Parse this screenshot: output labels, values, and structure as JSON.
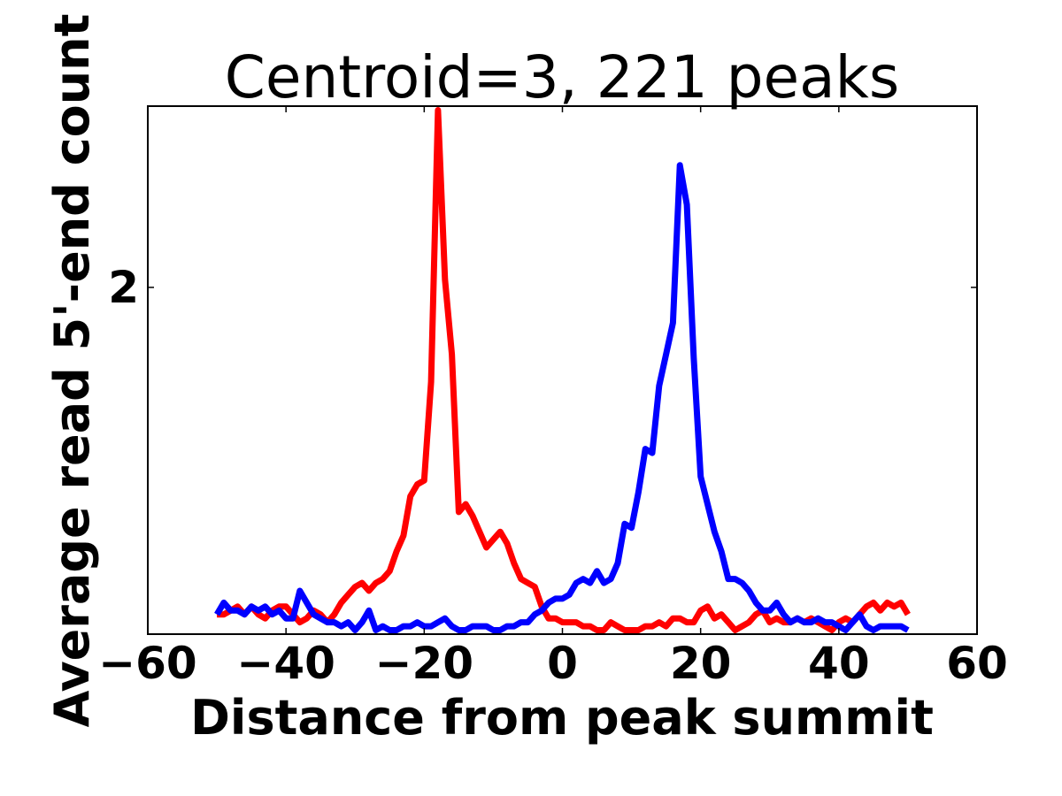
{
  "chart_data": {
    "type": "line",
    "title": "Centroid=3, 221 peaks",
    "xlabel": "Distance from peak summit",
    "ylabel": "Average read 5'-end count",
    "xlim": [
      -60,
      60
    ],
    "ylim": [
      1.12,
      2.46
    ],
    "xticks": [
      -60,
      -40,
      -20,
      0,
      20,
      40,
      60
    ],
    "xtick_labels": [
      "−60",
      "−40",
      "−20",
      "0",
      "20",
      "40",
      "60"
    ],
    "yticks": [
      2
    ],
    "ytick_labels": [
      "2"
    ],
    "grid": false,
    "legend": "none",
    "series": [
      {
        "color": "#ff0000",
        "x": [
          -50,
          -49,
          -48,
          -47,
          -46,
          -45,
          -44,
          -43,
          -42,
          -41,
          -40,
          -39,
          -38,
          -37,
          -36,
          -35,
          -34,
          -33,
          -32,
          -31,
          -30,
          -29,
          -28,
          -27,
          -26,
          -25,
          -24,
          -23,
          -22,
          -21,
          -20,
          -19,
          -18,
          -17,
          -16,
          -15,
          -14,
          -13,
          -12,
          -11,
          -10,
          -9,
          -8,
          -7,
          -6,
          -5,
          -4,
          -3,
          -2,
          -1,
          0,
          1,
          2,
          3,
          4,
          5,
          6,
          7,
          8,
          9,
          10,
          11,
          12,
          13,
          14,
          15,
          16,
          17,
          18,
          19,
          20,
          21,
          22,
          23,
          24,
          25,
          26,
          27,
          28,
          29,
          30,
          31,
          32,
          33,
          34,
          35,
          36,
          37,
          38,
          39,
          40,
          41,
          42,
          43,
          44,
          45,
          46,
          47,
          48,
          49,
          50
        ],
        "y": [
          1.17,
          1.17,
          1.18,
          1.19,
          1.17,
          1.19,
          1.17,
          1.16,
          1.18,
          1.19,
          1.19,
          1.17,
          1.15,
          1.16,
          1.18,
          1.17,
          1.15,
          1.17,
          1.2,
          1.22,
          1.24,
          1.25,
          1.23,
          1.25,
          1.26,
          1.28,
          1.33,
          1.37,
          1.47,
          1.5,
          1.51,
          1.76,
          2.45,
          2.02,
          1.83,
          1.43,
          1.45,
          1.42,
          1.38,
          1.34,
          1.36,
          1.38,
          1.35,
          1.3,
          1.26,
          1.25,
          1.24,
          1.19,
          1.16,
          1.16,
          1.15,
          1.15,
          1.15,
          1.14,
          1.14,
          1.13,
          1.13,
          1.15,
          1.14,
          1.13,
          1.13,
          1.13,
          1.14,
          1.14,
          1.15,
          1.14,
          1.16,
          1.16,
          1.15,
          1.15,
          1.18,
          1.19,
          1.16,
          1.17,
          1.15,
          1.13,
          1.14,
          1.15,
          1.17,
          1.18,
          1.15,
          1.16,
          1.15,
          1.15,
          1.16,
          1.15,
          1.16,
          1.15,
          1.14,
          1.13,
          1.15,
          1.16,
          1.15,
          1.17,
          1.19,
          1.2,
          1.18,
          1.2,
          1.19,
          1.2,
          1.17
        ]
      },
      {
        "color": "#0000ff",
        "x": [
          -50,
          -49,
          -48,
          -47,
          -46,
          -45,
          -44,
          -43,
          -42,
          -41,
          -40,
          -39,
          -38,
          -37,
          -36,
          -35,
          -34,
          -33,
          -32,
          -31,
          -30,
          -29,
          -28,
          -27,
          -26,
          -25,
          -24,
          -23,
          -22,
          -21,
          -20,
          -19,
          -18,
          -17,
          -16,
          -15,
          -14,
          -13,
          -12,
          -11,
          -10,
          -9,
          -8,
          -7,
          -6,
          -5,
          -4,
          -3,
          -2,
          -1,
          0,
          1,
          2,
          3,
          4,
          5,
          6,
          7,
          8,
          9,
          10,
          11,
          12,
          13,
          14,
          15,
          16,
          17,
          18,
          19,
          20,
          21,
          22,
          23,
          24,
          25,
          26,
          27,
          28,
          29,
          30,
          31,
          32,
          33,
          34,
          35,
          36,
          37,
          38,
          39,
          40,
          41,
          42,
          43,
          44,
          45,
          46,
          47,
          48,
          49,
          50
        ],
        "y": [
          1.17,
          1.2,
          1.18,
          1.18,
          1.17,
          1.19,
          1.18,
          1.19,
          1.17,
          1.18,
          1.16,
          1.16,
          1.23,
          1.2,
          1.17,
          1.16,
          1.15,
          1.15,
          1.14,
          1.15,
          1.13,
          1.15,
          1.18,
          1.13,
          1.14,
          1.13,
          1.13,
          1.14,
          1.14,
          1.15,
          1.14,
          1.14,
          1.15,
          1.16,
          1.14,
          1.13,
          1.13,
          1.14,
          1.14,
          1.14,
          1.13,
          1.13,
          1.14,
          1.14,
          1.15,
          1.15,
          1.17,
          1.18,
          1.2,
          1.21,
          1.21,
          1.22,
          1.25,
          1.26,
          1.25,
          1.28,
          1.25,
          1.26,
          1.3,
          1.4,
          1.39,
          1.48,
          1.59,
          1.58,
          1.75,
          1.83,
          1.91,
          2.31,
          2.21,
          1.82,
          1.52,
          1.45,
          1.38,
          1.33,
          1.26,
          1.26,
          1.25,
          1.23,
          1.2,
          1.18,
          1.18,
          1.2,
          1.17,
          1.15,
          1.16,
          1.15,
          1.15,
          1.16,
          1.15,
          1.15,
          1.14,
          1.13,
          1.15,
          1.17,
          1.14,
          1.13,
          1.14,
          1.14,
          1.14,
          1.14,
          1.13
        ]
      }
    ]
  }
}
